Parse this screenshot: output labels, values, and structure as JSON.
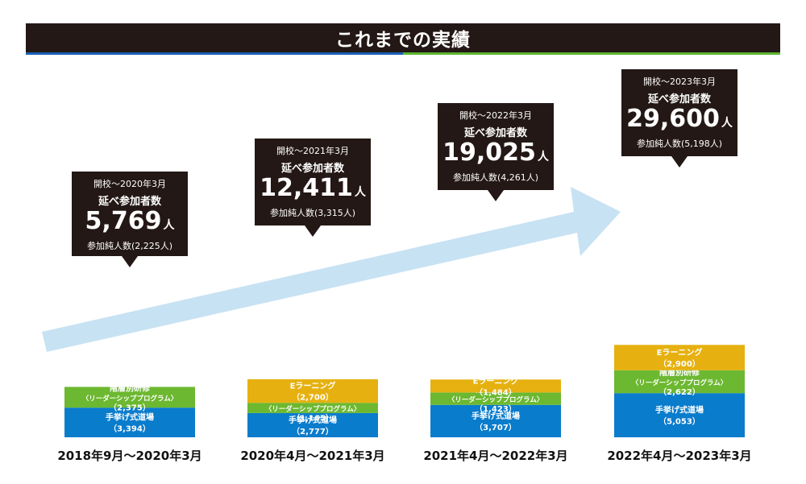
{
  "header": {
    "title": "これまでの実績"
  },
  "colors": {
    "header_bg": "#231815",
    "teaching": "#0a7ccc",
    "leadership": "#6cb830",
    "elearning": "#e6b110",
    "arrow": "#c7e2f3",
    "callout_bg": "#231815"
  },
  "chart_data": {
    "type": "bar",
    "stacked": true,
    "categories": [
      "2018年9月〜2020年3月",
      "2020年4月〜2021年3月",
      "2021年4月〜2022年3月",
      "2022年4月〜2023年3月"
    ],
    "series": [
      {
        "name": "手挙げ式道場",
        "values": [
          3394,
          2777,
          3707,
          5053
        ],
        "color": "#0a7ccc"
      },
      {
        "name": "階層別研修（リーダーシッププログラム）",
        "values": [
          2375,
          1165,
          1423,
          2622
        ],
        "color": "#6cb830"
      },
      {
        "name": "Eラーニング",
        "values": [
          null,
          2700,
          1484,
          2900
        ],
        "color": "#e6b110"
      }
    ],
    "bar_value_labels": [
      [
        "（3,394）",
        "（2,375）",
        null
      ],
      [
        "（2,777）",
        "（1,165）",
        "（2,700）"
      ],
      [
        "（3,707）",
        "（1,423）",
        "（1,484）"
      ],
      [
        "（5,053）",
        "（2,622）",
        "（2,900）"
      ]
    ],
    "segment_name_lines": [
      [
        "手挙げ式道場"
      ],
      [
        "階層別研修",
        "〈リーダーシッププログラム〉"
      ],
      [
        "Eラーニング"
      ]
    ],
    "callouts": [
      {
        "period": "開校〜2020年3月",
        "label": "延べ参加者数",
        "total": "5,769",
        "unit": "人",
        "unique": "参加純人数(2,225人)"
      },
      {
        "period": "開校〜2021年3月",
        "label": "延べ参加者数",
        "total": "12,411",
        "unit": "人",
        "unique": "参加純人数(3,315人)"
      },
      {
        "period": "開校〜2022年3月",
        "label": "延べ参加者数",
        "total": "19,025",
        "unit": "人",
        "unique": "参加純人数(4,261人)"
      },
      {
        "period": "開校〜2023年3月",
        "label": "延べ参加者数",
        "total": "29,600",
        "unit": "人",
        "unique": "参加純人数(5,198人)"
      }
    ],
    "legend": "none",
    "grid": false
  }
}
